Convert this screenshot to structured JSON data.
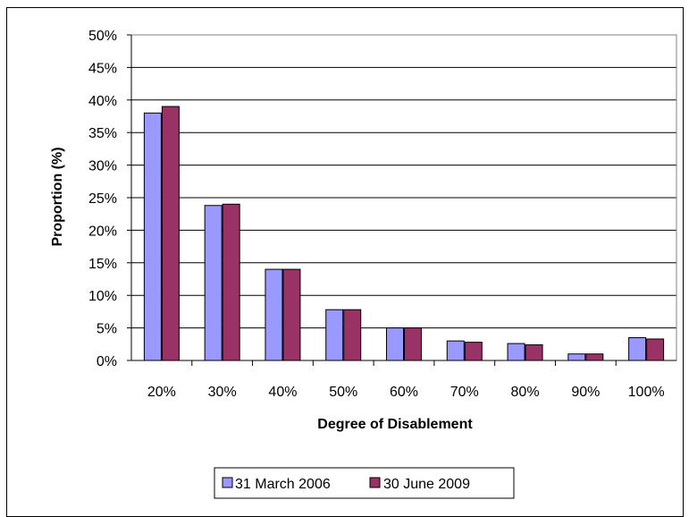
{
  "chart_data": {
    "type": "bar",
    "title": "",
    "xlabel": "Degree of Disablement",
    "ylabel": "Proportion (%)",
    "categories": [
      "20%",
      "30%",
      "40%",
      "50%",
      "60%",
      "70%",
      "80%",
      "90%",
      "100%"
    ],
    "series": [
      {
        "name": "31 March 2006",
        "color": "#9999ff",
        "values": [
          38,
          23.8,
          14,
          7.8,
          5,
          3,
          2.6,
          1,
          3.5
        ]
      },
      {
        "name": "30 June 2009",
        "color": "#993366",
        "values": [
          39,
          24,
          14,
          7.8,
          5,
          2.8,
          2.4,
          1,
          3.3
        ]
      }
    ],
    "ylim": [
      0,
      50
    ],
    "yticks": [
      "0%",
      "5%",
      "10%",
      "15%",
      "20%",
      "25%",
      "30%",
      "35%",
      "40%",
      "45%",
      "50%"
    ],
    "grid": true,
    "legend": "bottom"
  }
}
